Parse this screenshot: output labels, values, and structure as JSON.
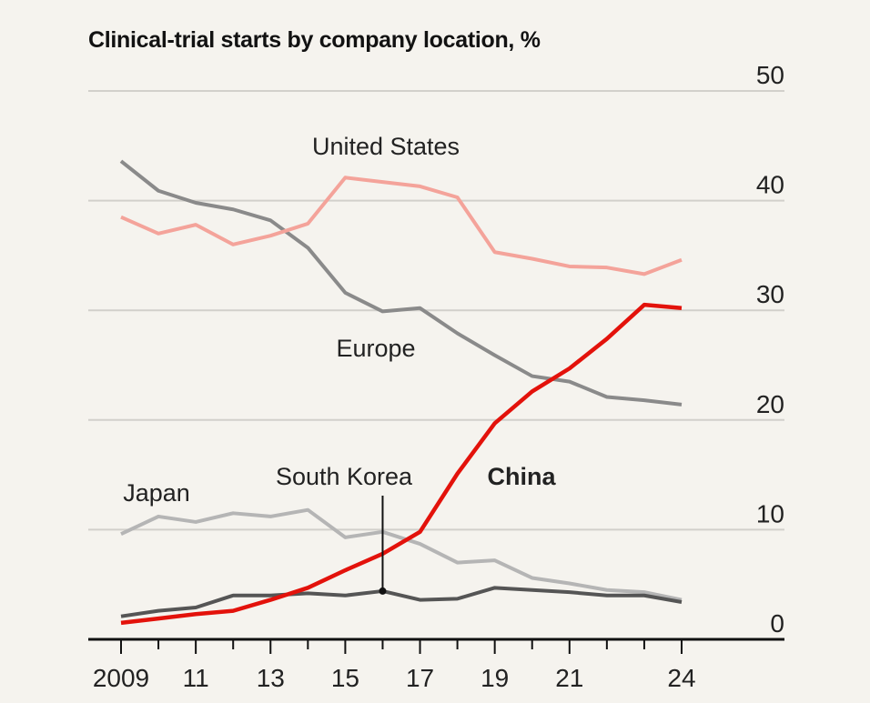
{
  "chart_data": {
    "type": "line",
    "title": "Clinical-trial starts by company location, %",
    "xlabel": "",
    "ylabel": "%",
    "x": [
      2009,
      2010,
      2011,
      2012,
      2013,
      2014,
      2015,
      2016,
      2017,
      2018,
      2019,
      2020,
      2021,
      2022,
      2023,
      2024
    ],
    "x_tick_values": [
      2009,
      2011,
      2013,
      2015,
      2017,
      2019,
      2021,
      2024
    ],
    "x_tick_labels": [
      "2009",
      "11",
      "13",
      "15",
      "17",
      "19",
      "21",
      "24"
    ],
    "ylim": [
      0,
      50
    ],
    "y_tick_values": [
      0,
      10,
      20,
      30,
      40,
      50
    ],
    "y_tick_labels": [
      "0",
      "10",
      "20",
      "30",
      "40",
      "50"
    ],
    "grid": true,
    "legend": "inline labels",
    "series": [
      {
        "name": "United States",
        "color": "#f4a39a",
        "bold": false,
        "values": [
          38.5,
          37.0,
          37.8,
          36.0,
          36.8,
          37.9,
          42.1,
          41.7,
          41.3,
          40.3,
          35.3,
          34.7,
          34.0,
          33.9,
          33.3,
          34.6
        ]
      },
      {
        "name": "Europe",
        "color": "#8a8a8a",
        "bold": false,
        "values": [
          43.6,
          40.9,
          39.8,
          39.2,
          38.2,
          35.7,
          31.6,
          29.9,
          30.2,
          27.9,
          25.9,
          24.0,
          23.5,
          22.1,
          21.8,
          21.4
        ]
      },
      {
        "name": "China",
        "color": "#e3120b",
        "bold": true,
        "values": [
          1.5,
          1.9,
          2.3,
          2.6,
          3.6,
          4.7,
          6.3,
          7.8,
          9.8,
          15.1,
          19.7,
          22.6,
          24.7,
          27.4,
          30.5,
          30.2
        ]
      },
      {
        "name": "Japan",
        "color": "#b5b5b5",
        "bold": false,
        "values": [
          9.6,
          11.2,
          10.7,
          11.5,
          11.2,
          11.8,
          9.3,
          9.8,
          8.7,
          7.0,
          7.2,
          5.6,
          5.1,
          4.5,
          4.3,
          3.6
        ]
      },
      {
        "name": "South Korea",
        "color": "#555555",
        "bold": false,
        "values": [
          2.1,
          2.6,
          2.9,
          4.0,
          4.0,
          4.2,
          4.0,
          4.4,
          3.6,
          3.7,
          4.7,
          4.5,
          4.3,
          4.0,
          4.0,
          3.4
        ]
      }
    ],
    "annotations": [
      {
        "series": "South Korea",
        "x": 2016,
        "type": "leader-line"
      }
    ]
  }
}
